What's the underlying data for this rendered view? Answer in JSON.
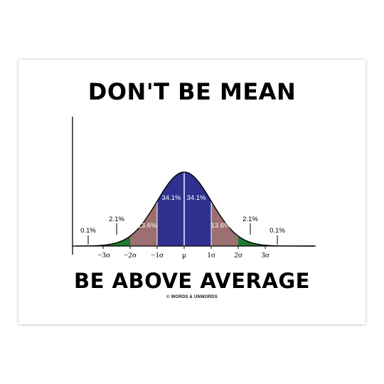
{
  "headline_top": "DON'T BE MEAN",
  "headline_bottom": "BE ABOVE AVERAGE",
  "credit": "© WORDS & UNWORDS",
  "colors": {
    "center_band": "#2e3190",
    "second_band": "#9c7070",
    "third_band": "#1c7b2e",
    "outline": "#000000"
  },
  "distribution": {
    "percentages": {
      "center_left": "34.1%",
      "center_right": "34.1%",
      "second_left": "13.6%",
      "second_right": "13.6%",
      "third_left": "2.1%",
      "third_right": "2.1%",
      "tail_left": "0.1%",
      "tail_right": "0.1%"
    },
    "axis_labels": [
      "−3σ",
      "−2σ",
      "−1σ",
      "μ",
      "1σ",
      "2σ",
      "3σ"
    ]
  }
}
